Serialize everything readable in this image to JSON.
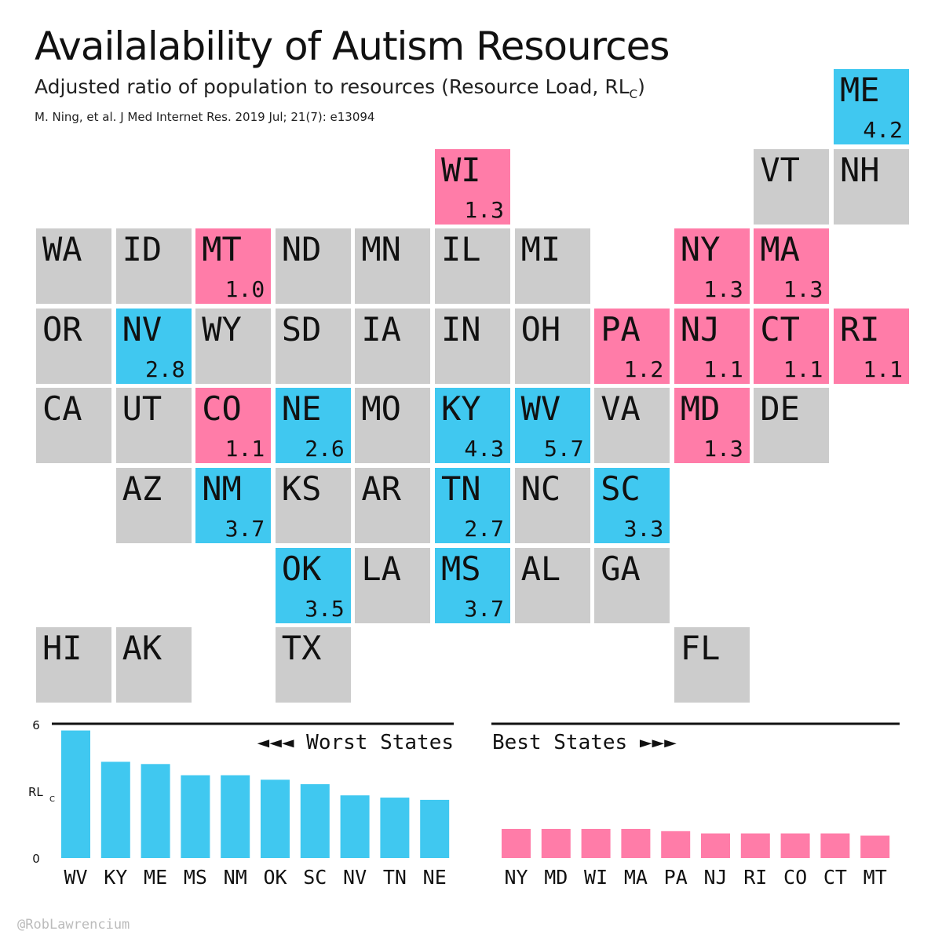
{
  "title": "Availalability of Autism Resources",
  "subtitle": {
    "text": "Adjusted ratio of population to resources (Resource Load, RL",
    "subscript": "C",
    "close": ")"
  },
  "citation": "M. Ning, et al. J Med Internet Res. 2019 Jul; 21(7): e13094",
  "credit": "@RobLawrencium",
  "colors": {
    "worst": "#40c8f0",
    "best": "#ff7ca8",
    "neutral": "#cccccc",
    "rule": "#111111"
  },
  "chart_data": [
    {
      "type": "heatmap",
      "tiles": [
        {
          "state": "ME",
          "row": 0,
          "col": 10,
          "value": "4.2",
          "group": "worst"
        },
        {
          "state": "WI",
          "row": 1,
          "col": 5,
          "value": "1.3",
          "group": "best"
        },
        {
          "state": "VT",
          "row": 1,
          "col": 9,
          "value": "",
          "group": "neutral"
        },
        {
          "state": "NH",
          "row": 1,
          "col": 10,
          "value": "",
          "group": "neutral"
        },
        {
          "state": "WA",
          "row": 2,
          "col": 0,
          "value": "",
          "group": "neutral"
        },
        {
          "state": "ID",
          "row": 2,
          "col": 1,
          "value": "",
          "group": "neutral"
        },
        {
          "state": "MT",
          "row": 2,
          "col": 2,
          "value": "1.0",
          "group": "best"
        },
        {
          "state": "ND",
          "row": 2,
          "col": 3,
          "value": "",
          "group": "neutral"
        },
        {
          "state": "MN",
          "row": 2,
          "col": 4,
          "value": "",
          "group": "neutral"
        },
        {
          "state": "IL",
          "row": 2,
          "col": 5,
          "value": "",
          "group": "neutral"
        },
        {
          "state": "MI",
          "row": 2,
          "col": 6,
          "value": "",
          "group": "neutral"
        },
        {
          "state": "NY",
          "row": 2,
          "col": 8,
          "value": "1.3",
          "group": "best"
        },
        {
          "state": "MA",
          "row": 2,
          "col": 9,
          "value": "1.3",
          "group": "best"
        },
        {
          "state": "OR",
          "row": 3,
          "col": 0,
          "value": "",
          "group": "neutral"
        },
        {
          "state": "NV",
          "row": 3,
          "col": 1,
          "value": "2.8",
          "group": "worst"
        },
        {
          "state": "WY",
          "row": 3,
          "col": 2,
          "value": "",
          "group": "neutral"
        },
        {
          "state": "SD",
          "row": 3,
          "col": 3,
          "value": "",
          "group": "neutral"
        },
        {
          "state": "IA",
          "row": 3,
          "col": 4,
          "value": "",
          "group": "neutral"
        },
        {
          "state": "IN",
          "row": 3,
          "col": 5,
          "value": "",
          "group": "neutral"
        },
        {
          "state": "OH",
          "row": 3,
          "col": 6,
          "value": "",
          "group": "neutral"
        },
        {
          "state": "PA",
          "row": 3,
          "col": 7,
          "value": "1.2",
          "group": "best"
        },
        {
          "state": "NJ",
          "row": 3,
          "col": 8,
          "value": "1.1",
          "group": "best"
        },
        {
          "state": "CT",
          "row": 3,
          "col": 9,
          "value": "1.1",
          "group": "best"
        },
        {
          "state": "RI",
          "row": 3,
          "col": 10,
          "value": "1.1",
          "group": "best"
        },
        {
          "state": "CA",
          "row": 4,
          "col": 0,
          "value": "",
          "group": "neutral"
        },
        {
          "state": "UT",
          "row": 4,
          "col": 1,
          "value": "",
          "group": "neutral"
        },
        {
          "state": "CO",
          "row": 4,
          "col": 2,
          "value": "1.1",
          "group": "best"
        },
        {
          "state": "NE",
          "row": 4,
          "col": 3,
          "value": "2.6",
          "group": "worst"
        },
        {
          "state": "MO",
          "row": 4,
          "col": 4,
          "value": "",
          "group": "neutral"
        },
        {
          "state": "KY",
          "row": 4,
          "col": 5,
          "value": "4.3",
          "group": "worst"
        },
        {
          "state": "WV",
          "row": 4,
          "col": 6,
          "value": "5.7",
          "group": "worst"
        },
        {
          "state": "VA",
          "row": 4,
          "col": 7,
          "value": "",
          "group": "neutral"
        },
        {
          "state": "MD",
          "row": 4,
          "col": 8,
          "value": "1.3",
          "group": "best"
        },
        {
          "state": "DE",
          "row": 4,
          "col": 9,
          "value": "",
          "group": "neutral"
        },
        {
          "state": "AZ",
          "row": 5,
          "col": 1,
          "value": "",
          "group": "neutral"
        },
        {
          "state": "NM",
          "row": 5,
          "col": 2,
          "value": "3.7",
          "group": "worst"
        },
        {
          "state": "KS",
          "row": 5,
          "col": 3,
          "value": "",
          "group": "neutral"
        },
        {
          "state": "AR",
          "row": 5,
          "col": 4,
          "value": "",
          "group": "neutral"
        },
        {
          "state": "TN",
          "row": 5,
          "col": 5,
          "value": "2.7",
          "group": "worst"
        },
        {
          "state": "NC",
          "row": 5,
          "col": 6,
          "value": "",
          "group": "neutral"
        },
        {
          "state": "SC",
          "row": 5,
          "col": 7,
          "value": "3.3",
          "group": "worst"
        },
        {
          "state": "OK",
          "row": 6,
          "col": 3,
          "value": "3.5",
          "group": "worst"
        },
        {
          "state": "LA",
          "row": 6,
          "col": 4,
          "value": "",
          "group": "neutral"
        },
        {
          "state": "MS",
          "row": 6,
          "col": 5,
          "value": "3.7",
          "group": "worst"
        },
        {
          "state": "AL",
          "row": 6,
          "col": 6,
          "value": "",
          "group": "neutral"
        },
        {
          "state": "GA",
          "row": 6,
          "col": 7,
          "value": "",
          "group": "neutral"
        },
        {
          "state": "HI",
          "row": 7,
          "col": 0,
          "value": "",
          "group": "neutral"
        },
        {
          "state": "AK",
          "row": 7,
          "col": 1,
          "value": "",
          "group": "neutral"
        },
        {
          "state": "TX",
          "row": 7,
          "col": 3,
          "value": "",
          "group": "neutral"
        },
        {
          "state": "FL",
          "row": 7,
          "col": 8,
          "value": "",
          "group": "neutral"
        }
      ]
    },
    {
      "type": "bar",
      "title": "◄◄◄ Worst States",
      "categories": [
        "WV",
        "KY",
        "ME",
        "MS",
        "NM",
        "OK",
        "SC",
        "NV",
        "TN",
        "NE"
      ],
      "values": [
        5.7,
        4.3,
        4.2,
        3.7,
        3.7,
        3.5,
        3.3,
        2.8,
        2.7,
        2.6
      ],
      "ylabel": "RL",
      "ylabel_sub": "C",
      "ylim": [
        0,
        6
      ],
      "yticks": [
        "0",
        "6"
      ],
      "color": "#40c8f0"
    },
    {
      "type": "bar",
      "title": "Best States ►►►",
      "categories": [
        "NY",
        "MD",
        "WI",
        "MA",
        "PA",
        "NJ",
        "RI",
        "CO",
        "CT",
        "MT"
      ],
      "values": [
        1.3,
        1.3,
        1.3,
        1.3,
        1.2,
        1.1,
        1.1,
        1.1,
        1.1,
        1.0
      ],
      "ylim": [
        0,
        6
      ],
      "color": "#ff7ca8"
    }
  ]
}
